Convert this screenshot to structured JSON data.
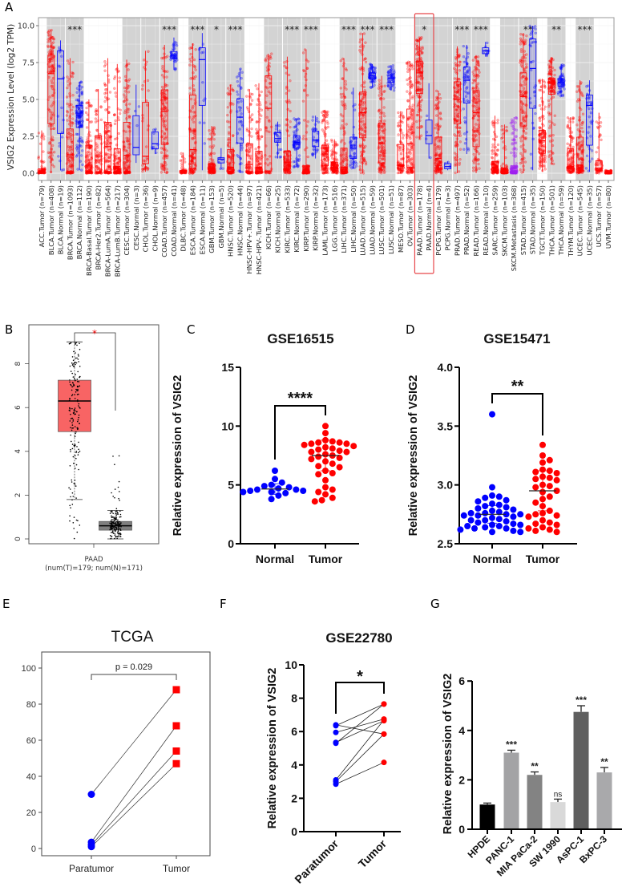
{
  "panel_labels": {
    "a": "A",
    "b": "B",
    "c": "C",
    "d": "D",
    "e": "E",
    "f": "F",
    "g": "G"
  },
  "colors": {
    "tumor": "#ff0000",
    "normal": "#0000ff",
    "metastasis": "#a020f0",
    "band": "#d3d3d3",
    "highlight": "#e8474b",
    "b_tumor": "#f86464",
    "b_normal": "#7f7f7f"
  },
  "chart_data": [
    {
      "id": "A",
      "type": "box",
      "ylabel": "VSIG2 Expression Level (log2 TPM)",
      "ylim": [
        0,
        10
      ],
      "yticks": [
        "0.0",
        "2.5",
        "5.0",
        "7.5",
        "10.0"
      ],
      "highlight": "PAAD",
      "fields": [
        "label",
        "n",
        "q1",
        "median",
        "q3",
        "low",
        "high"
      ],
      "categories": [
        [
          "ACC.Tumor (n=79)",
          79,
          0.05,
          0.15,
          0.3,
          0,
          2.9
        ],
        [
          "BLCA.Tumor (n=408)",
          408,
          3.35,
          6.75,
          8.0,
          0,
          9.7
        ],
        [
          "BLCA.Normal (n=19)",
          19,
          2.7,
          6.4,
          8.3,
          0.2,
          9.0
        ],
        [
          "BRCA.Tumor (n=1093)",
          1093,
          0.1,
          1.25,
          3.0,
          0,
          7.8
        ],
        [
          "BRCA.Normal (n=112)",
          112,
          3.1,
          3.9,
          4.6,
          0.2,
          6.2
        ],
        [
          "BRCA-Basal.Tumor (n=190)",
          190,
          0.1,
          0.55,
          1.9,
          0,
          5.0
        ],
        [
          "BRCA-Her2.Tumor (n=82)",
          82,
          0.1,
          0.9,
          2.55,
          0,
          5.7
        ],
        [
          "BRCA-LumA.Tumor (n=564)",
          564,
          0.1,
          1.8,
          3.45,
          0,
          7.8
        ],
        [
          "BRCA-LumB.Tumor (n=217)",
          217,
          0.1,
          0.45,
          1.65,
          0,
          7.4
        ],
        [
          "CESC.Tumor (n=304)",
          304,
          0.1,
          1.2,
          3.45,
          0,
          7.7
        ],
        [
          "CESC.Normal (n=3)",
          3,
          1.25,
          1.75,
          3.9,
          0.7,
          6.0
        ],
        [
          "CHOL.Tumor (n=36)",
          36,
          0.65,
          1.15,
          4.8,
          0.1,
          8.3
        ],
        [
          "CHOL.Normal (n=9)",
          9,
          1.65,
          2.0,
          2.8,
          1.3,
          3.0
        ],
        [
          "COAD.Tumor (n=457)",
          457,
          1.95,
          4.2,
          5.65,
          0,
          8.7
        ],
        [
          "COAD.Normal (n=41)",
          41,
          7.75,
          8.0,
          8.25,
          7.0,
          9.2
        ],
        [
          "DLBC.Tumor (n=48)",
          48,
          0.05,
          0.1,
          0.2,
          0,
          1.4
        ],
        [
          "ESCA.Tumor (n=184)",
          184,
          0.3,
          1.6,
          5.3,
          0,
          8.8
        ],
        [
          "ESCA.Normal (n=11)",
          11,
          4.6,
          7.7,
          8.5,
          0.2,
          9.5
        ],
        [
          "GBM.Tumor (n=153)",
          153,
          0.2,
          0.35,
          0.65,
          0,
          3.2
        ],
        [
          "GBM.Normal (n=5)",
          5,
          0.7,
          0.95,
          1.05,
          0.3,
          1.7
        ],
        [
          "HNSC.Tumor (n=520)",
          520,
          0.1,
          0.4,
          1.6,
          0,
          6.0
        ],
        [
          "HNSC.Normal (n=44)",
          44,
          2.05,
          3.8,
          5.05,
          0,
          7.1
        ],
        [
          "HNSC-HPV+.Tumor (n=97)",
          97,
          0.1,
          0.6,
          2.0,
          0,
          5.7
        ],
        [
          "HNSC-HPV-.Tumor (n=421)",
          421,
          0.1,
          0.4,
          1.5,
          0,
          6.1
        ],
        [
          "KICH.Tumor (n=66)",
          66,
          0.15,
          4.4,
          6.6,
          0,
          8.1
        ],
        [
          "KICH.Normal (n=25)",
          25,
          2.1,
          2.35,
          2.75,
          1.0,
          3.5
        ],
        [
          "KIRC.Tumor (n=533)",
          533,
          0.3,
          0.75,
          1.5,
          0,
          7.9
        ],
        [
          "KIRC.Normal (n=72)",
          72,
          1.7,
          2.1,
          2.55,
          0.4,
          3.7
        ],
        [
          "KIRP.Tumor (n=290)",
          290,
          0.05,
          0.15,
          0.5,
          0,
          8.4
        ],
        [
          "KIRP.Normal (n=32)",
          32,
          1.8,
          2.25,
          2.85,
          1.0,
          3.9
        ],
        [
          "LAML.Tumor (n=173)",
          173,
          0.5,
          1.3,
          1.9,
          0,
          4.3
        ],
        [
          "LGG.Tumor (n=516)",
          516,
          0.2,
          0.4,
          0.75,
          0,
          2.3
        ],
        [
          "LIHC.Tumor (n=371)",
          371,
          0.1,
          0.4,
          1.7,
          0,
          7.8
        ],
        [
          "LIHC.Normal (n=50)",
          50,
          1.0,
          1.7,
          2.45,
          0.3,
          5.8
        ],
        [
          "LUAD.Tumor (n=515)",
          515,
          2.4,
          4.1,
          5.5,
          0,
          9.5
        ],
        [
          "LUAD.Normal (n=59)",
          59,
          6.4,
          6.6,
          6.8,
          5.8,
          7.4
        ],
        [
          "LUSC.Tumor (n=501)",
          501,
          0.7,
          2.05,
          3.4,
          0,
          6.6
        ],
        [
          "LUSC.Normal (n=51)",
          51,
          6.15,
          6.45,
          6.65,
          5.6,
          7.3
        ],
        [
          "MESO.Tumor (n=87)",
          87,
          0.5,
          0.55,
          1.95,
          0,
          4.2
        ],
        [
          "OV.Tumor (n=303)",
          303,
          0.4,
          2.0,
          4.35,
          0,
          7.6
        ],
        [
          "PAAD.Tumor (n=178)",
          178,
          5.4,
          6.8,
          7.6,
          2.3,
          9.2
        ],
        [
          "PAAD.Normal (n=4)",
          4,
          2.0,
          2.55,
          3.6,
          1.0,
          6.1
        ],
        [
          "PCPG.Tumor (n=179)",
          179,
          0.5,
          1.0,
          2.45,
          0,
          5.6
        ],
        [
          "PCPG.Normal (n=3)",
          3,
          0.3,
          0.45,
          0.65,
          0.2,
          0.8
        ],
        [
          "PRAD.Tumor (n=497)",
          497,
          3.35,
          5.0,
          6.2,
          0,
          8.6
        ],
        [
          "PRAD.Normal (n=52)",
          52,
          4.75,
          6.3,
          7.2,
          1.3,
          8.7
        ],
        [
          "READ.Tumor (n=166)",
          166,
          1.8,
          4.1,
          5.6,
          0,
          8.0
        ],
        [
          "READ.Normal (n=10)",
          10,
          8.1,
          8.3,
          8.5,
          7.9,
          8.9
        ],
        [
          "SARC.Tumor (n=259)",
          259,
          0.15,
          0.4,
          0.8,
          0,
          3.9
        ],
        [
          "SKCM.Tumor (n=103)",
          103,
          0.05,
          0.15,
          0.35,
          0,
          3.3
        ],
        [
          "SKCM.Metastasis (n=368)",
          368,
          0.05,
          0.15,
          0.5,
          0,
          3.8
        ],
        [
          "STAD.Tumor (n=415)",
          415,
          3.2,
          5.2,
          6.8,
          0,
          9.5
        ],
        [
          "STAD.Normal (n=35)",
          35,
          4.4,
          7.1,
          9.1,
          0.2,
          10.0
        ],
        [
          "TGCT.Tumor (n=150)",
          150,
          1.35,
          2.2,
          2.9,
          0.1,
          6.4
        ],
        [
          "THCA.Tumor (n=501)",
          501,
          5.35,
          6.1,
          6.45,
          0.6,
          7.8
        ],
        [
          "THCA.Normal (n=59)",
          59,
          5.9,
          6.15,
          6.4,
          5.2,
          7.4
        ],
        [
          "THYM.Tumor (n=120)",
          120,
          0.3,
          0.45,
          1.65,
          0,
          3.8
        ],
        [
          "UCEC.Tumor (n=545)",
          545,
          0.2,
          0.55,
          2.45,
          0,
          6.3
        ],
        [
          "UCEC.Normal (n=35)",
          35,
          1.9,
          4.6,
          5.3,
          0.1,
          6.3
        ],
        [
          "UCS.Tumor (n=57)",
          57,
          0.2,
          0.35,
          0.85,
          0,
          4.1
        ],
        [
          "UVM.Tumor (n=80)",
          80,
          0.02,
          0.05,
          0.1,
          0,
          0.2
        ]
      ],
      "significance": {
        "BRCA": "***",
        "COAD": "***",
        "ESCA": "***",
        "GBM": "*",
        "HNSC": "***",
        "KIRC": "***",
        "KIRP": "***",
        "LIHC": "***",
        "LUAD": "***",
        "LUSC": "***",
        "PAAD": "*",
        "PRAD": "***",
        "READ": "***",
        "STAD": "**",
        "THCA": "**",
        "UCEC": "***"
      }
    },
    {
      "id": "B",
      "type": "box",
      "xlabel": "PAAD",
      "xsublabel": "(num(T)=179; num(N)=171)",
      "yticks": [
        "0",
        "2",
        "4",
        "6",
        "8"
      ],
      "ylim": [
        0,
        9.6
      ],
      "significance": "*",
      "series": [
        {
          "name": "Tumor",
          "n": 179,
          "q1": 4.9,
          "median": 6.3,
          "q3": 7.25,
          "low": 1.8,
          "high": 9.0
        },
        {
          "name": "Normal",
          "n": 171,
          "q1": 0.4,
          "median": 0.6,
          "q3": 0.8,
          "low": 0,
          "high": 1.3
        }
      ]
    },
    {
      "id": "C",
      "type": "scatter",
      "title": "GSE16515",
      "ylabel": "Relative expression of VSIG2",
      "ylim": [
        0,
        15
      ],
      "yticks": [
        "0",
        "5",
        "10",
        "15"
      ],
      "categories": [
        "Normal",
        "Tumor"
      ],
      "significance": "****",
      "series": [
        {
          "name": "Normal",
          "mean": 4.65,
          "sd": 0.45,
          "values": [
            6.2,
            5.5,
            5.2,
            5.0,
            4.9,
            4.8,
            4.7,
            4.6,
            4.6,
            4.5,
            4.5,
            4.4,
            4.4,
            4.3,
            4.1,
            3.8
          ]
        },
        {
          "name": "Tumor",
          "mean": 7.5,
          "sd": 1.3,
          "values": [
            10.0,
            9.4,
            8.8,
            8.7,
            8.6,
            8.6,
            8.5,
            8.5,
            8.4,
            8.3,
            8.2,
            8.1,
            8.0,
            7.9,
            7.8,
            7.8,
            7.6,
            7.5,
            7.4,
            7.3,
            7.2,
            7.0,
            6.8,
            6.6,
            6.5,
            6.2,
            6.0,
            5.9,
            5.4,
            4.8,
            4.6,
            4.4,
            4.2,
            3.9,
            3.7,
            3.6
          ]
        }
      ]
    },
    {
      "id": "D",
      "type": "scatter",
      "title": "GSE15471",
      "ylabel": "Relative expression of VSIG2",
      "ylim": [
        2.5,
        4.0
      ],
      "yticks": [
        "2.5",
        "3.0",
        "3.5",
        "4.0"
      ],
      "categories": [
        "Normal",
        "Tumor"
      ],
      "significance": "**",
      "series": [
        {
          "name": "Normal",
          "mean": 2.75,
          "sd": 0.075,
          "values": [
            3.6,
            2.98,
            2.91,
            2.9,
            2.89,
            2.87,
            2.86,
            2.84,
            2.83,
            2.82,
            2.81,
            2.8,
            2.79,
            2.78,
            2.77,
            2.76,
            2.76,
            2.75,
            2.75,
            2.74,
            2.74,
            2.73,
            2.72,
            2.71,
            2.7,
            2.7,
            2.69,
            2.68,
            2.67,
            2.66,
            2.66,
            2.65,
            2.65,
            2.64,
            2.63,
            2.63,
            2.62,
            2.61,
            2.6,
            2.6
          ]
        },
        {
          "name": "Tumor",
          "mean": 2.95,
          "sd": 0.17,
          "values": [
            3.34,
            3.25,
            3.21,
            3.19,
            3.13,
            3.12,
            3.11,
            3.1,
            3.07,
            3.06,
            3.05,
            3.04,
            3.0,
            2.99,
            2.98,
            2.95,
            2.94,
            2.9,
            2.88,
            2.85,
            2.82,
            2.78,
            2.76,
            2.75,
            2.74,
            2.73,
            2.7,
            2.68,
            2.67,
            2.66,
            2.64,
            2.63,
            2.62,
            2.61,
            2.6
          ]
        }
      ]
    },
    {
      "id": "E",
      "type": "line",
      "title": "TCGA",
      "ylim": [
        -4,
        110
      ],
      "yticks": [
        "0",
        "20",
        "40",
        "60",
        "80",
        "100"
      ],
      "categories": [
        "Paratumor",
        "Tumor"
      ],
      "annotation": "p = 0.029",
      "pairs": [
        [
          30,
          88
        ],
        [
          3.5,
          68
        ],
        [
          2,
          54
        ],
        [
          1,
          47
        ]
      ]
    },
    {
      "id": "F",
      "type": "line",
      "title": "GSE22780",
      "ylabel": "Relative expression of VSIG2",
      "ylim": [
        0,
        10
      ],
      "yticks": [
        "0",
        "2",
        "4",
        "6",
        "8",
        "10"
      ],
      "categories": [
        "Paratumor",
        "Tumor"
      ],
      "significance": "*",
      "pairs": [
        [
          6.4,
          5.85
        ],
        [
          6.35,
          7.65
        ],
        [
          5.95,
          6.75
        ],
        [
          5.35,
          6.65
        ],
        [
          5.3,
          7.65
        ],
        [
          3.1,
          6.7
        ],
        [
          3.0,
          5.85
        ],
        [
          2.85,
          4.15
        ]
      ]
    },
    {
      "id": "G",
      "type": "bar",
      "ylabel": "Relative expression of VSIG2",
      "ylim": [
        0,
        6
      ],
      "yticks": [
        "0",
        "2",
        "4",
        "6"
      ],
      "categories": [
        "HPDE",
        "PANC-1",
        "MIA PaCa-2",
        "SW 1990",
        "AsPC-1",
        "BxPC-3"
      ],
      "values": [
        1.0,
        3.1,
        2.2,
        1.1,
        4.75,
        2.3
      ],
      "errors": [
        0.06,
        0.1,
        0.12,
        0.12,
        0.25,
        0.2
      ],
      "significance": [
        "",
        "***",
        "**",
        "ns",
        "***",
        "**"
      ],
      "bar_colors": [
        "#000000",
        "#a3a3a5",
        "#838383",
        "#d9d9d9",
        "#5f5f5f",
        "#a9a9ab"
      ]
    }
  ]
}
